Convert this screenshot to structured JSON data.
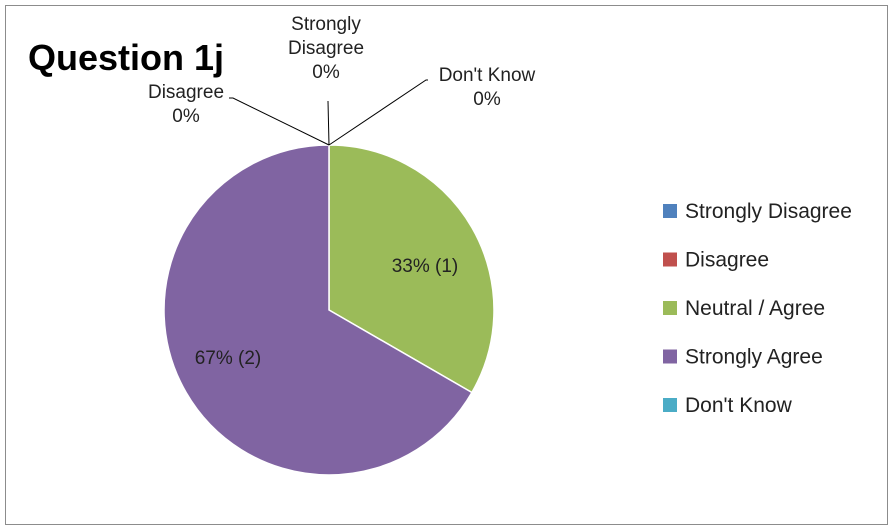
{
  "chart_data": {
    "type": "pie",
    "title": "Question 1j",
    "categories": [
      "Strongly Disagree",
      "Disagree",
      "Neutral / Agree",
      "Strongly Agree",
      "Don't Know"
    ],
    "values": [
      0,
      0,
      1,
      2,
      0
    ],
    "labels": [
      [
        "Strongly",
        "Disagree",
        "0%"
      ],
      [
        "Disagree",
        "0%"
      ],
      [
        "33% (1)"
      ],
      [
        "67% (2)"
      ],
      [
        "Don't Know",
        "0%"
      ]
    ],
    "colors": [
      "#4f81bd",
      "#c0504d",
      "#9bbb59",
      "#8064a2",
      "#4bacc6"
    ],
    "legend": {
      "position": "right"
    }
  }
}
